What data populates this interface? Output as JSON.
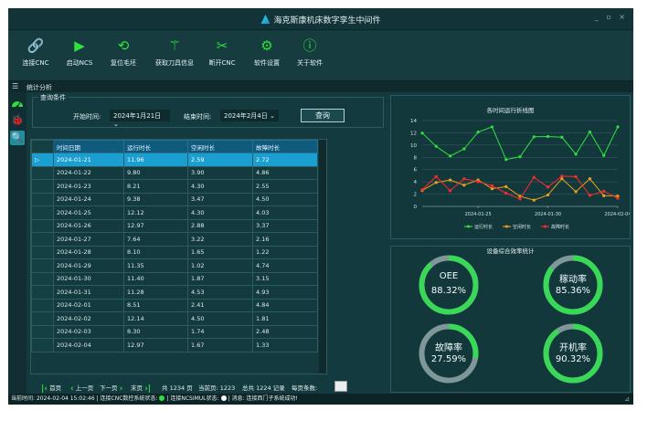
{
  "window": {
    "title": "海克斯康机床数字孪生中间件",
    "controls": "_ ▫ ×"
  },
  "toolbar": {
    "items": [
      {
        "label": "连接CNC",
        "icon": "🔗",
        "name": "connect-cnc"
      },
      {
        "label": "启动NCS",
        "icon": "▶",
        "name": "start-ncs"
      },
      {
        "label": "复位毛坯",
        "icon": "⟲",
        "name": "reset-blank"
      },
      {
        "label": "获取刀具信息",
        "icon": "⚚",
        "name": "tool-info"
      },
      {
        "label": "断开CNC",
        "icon": "✂",
        "name": "disconnect-cnc"
      },
      {
        "label": "软件设置",
        "icon": "⚙",
        "name": "settings"
      },
      {
        "label": "关于软件",
        "icon": "ⓘ",
        "name": "about"
      }
    ]
  },
  "tab": {
    "menu": "☰",
    "label": "统计分析"
  },
  "sidebar": {
    "icons": [
      "🐞",
      "🔍"
    ]
  },
  "query": {
    "legend": "查询条件",
    "start_label": "开始时间:",
    "start_value": "2024年1月21日",
    "end_label": "结束时间:",
    "end_value": "2024年2月4日",
    "button": "查询",
    "arrow": "⌄"
  },
  "table": {
    "headers": [
      "时间日期",
      "运行时长",
      "空闲时长",
      "故障时长"
    ],
    "selected_index": 0,
    "rows": [
      [
        "2024-01-21",
        "11.96",
        "2.59",
        "2.72"
      ],
      [
        "2024-01-22",
        "9.80",
        "3.90",
        "4.86"
      ],
      [
        "2024-01-23",
        "8.21",
        "4.30",
        "2.55"
      ],
      [
        "2024-01-24",
        "9.38",
        "3.47",
        "4.50"
      ],
      [
        "2024-01-25",
        "12.12",
        "4.30",
        "4.03"
      ],
      [
        "2024-01-26",
        "12.97",
        "2.88",
        "3.37"
      ],
      [
        "2024-01-27",
        "7.64",
        "3.22",
        "2.16"
      ],
      [
        "2024-01-28",
        "8.10",
        "1.65",
        "1.22"
      ],
      [
        "2024-01-29",
        "11.35",
        "1.02",
        "4.74"
      ],
      [
        "2024-01-30",
        "11.40",
        "1.87",
        "3.15"
      ],
      [
        "2024-01-31",
        "11.28",
        "4.53",
        "4.93"
      ],
      [
        "2024-02-01",
        "8.51",
        "2.41",
        "4.84"
      ],
      [
        "2024-02-02",
        "12.14",
        "4.50",
        "1.81"
      ],
      [
        "2024-02-03",
        "8.30",
        "1.74",
        "2.48"
      ],
      [
        "2024-02-04",
        "12.97",
        "1.67",
        "1.33"
      ]
    ]
  },
  "pager": {
    "first": "首页",
    "prev": "上一页",
    "next": "下一页",
    "last": "末页",
    "total": "共 1234 页",
    "current": "当前页: 1223",
    "records": "总共 1224 记录",
    "page_size": "每页条数:"
  },
  "chart_data": {
    "type": "line",
    "title": "各时间运行折线图",
    "x": [
      "2024-01-21",
      "2024-01-22",
      "2024-01-23",
      "2024-01-24",
      "2024-01-25",
      "2024-01-26",
      "2024-01-27",
      "2024-01-28",
      "2024-01-29",
      "2024-01-30",
      "2024-01-31",
      "2024-02-01",
      "2024-02-02",
      "2024-02-03",
      "2024-02-04"
    ],
    "x_ticks": [
      "2024-01-25",
      "2024-01-30",
      "2024-02-04"
    ],
    "ylim": [
      0,
      14
    ],
    "y_ticks": [
      0,
      2,
      4,
      6,
      8,
      10,
      12,
      14
    ],
    "legend_position": "bottom",
    "series": [
      {
        "name": "运行时长",
        "color": "#2ee23c",
        "values": [
          11.96,
          9.8,
          8.21,
          9.38,
          12.12,
          12.97,
          7.64,
          8.1,
          11.35,
          11.4,
          11.28,
          8.51,
          12.14,
          8.3,
          12.97
        ]
      },
      {
        "name": "空闲时长",
        "color": "#f0a020",
        "values": [
          2.59,
          3.9,
          4.3,
          3.47,
          4.3,
          2.88,
          3.22,
          1.65,
          1.02,
          1.87,
          4.53,
          2.41,
          4.5,
          1.74,
          1.67
        ]
      },
      {
        "name": "故障时长",
        "color": "#ff2a2a",
        "values": [
          2.72,
          4.86,
          2.55,
          4.5,
          4.03,
          3.37,
          2.16,
          1.22,
          4.74,
          3.15,
          4.93,
          4.84,
          1.81,
          2.48,
          1.33
        ]
      }
    ]
  },
  "gauges": {
    "title": "设备综合效率统计",
    "items": [
      {
        "name": "OEE",
        "value": "88.32%",
        "fraction": 0.8832
      },
      {
        "name": "稼动率",
        "value": "85.36%",
        "fraction": 0.8536
      },
      {
        "name": "故障率",
        "value": "27.59%",
        "fraction": 0.2759
      },
      {
        "name": "开机率",
        "value": "90.32%",
        "fraction": 0.9032
      }
    ],
    "track_color": "#7f9799",
    "fill_color": "#39d957"
  },
  "status": {
    "time_label": "当前时间:",
    "time_value": "2024-02-04 15:02:46",
    "cnc_label": "连接CNC数控系统状态:",
    "ncs_label": "连接NCSIMUL状态:",
    "msg_label": "消息:",
    "msg_value": "连接西门子系统成功!",
    "grip": "⊿"
  }
}
